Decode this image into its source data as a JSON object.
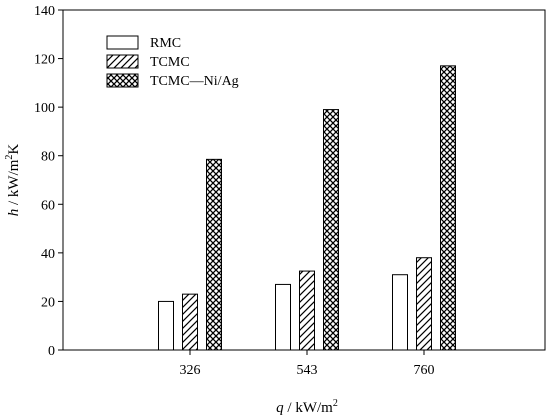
{
  "chart_data": {
    "type": "bar",
    "title": "",
    "xlabel": {
      "var": "q",
      "rest": " / kW/m",
      "sup": "2"
    },
    "ylabel": {
      "var": "h",
      "rest1": " / kW/m",
      "sup": "2",
      "rest2": "K"
    },
    "categories": [
      "326",
      "543",
      "760"
    ],
    "ylim": [
      0,
      140
    ],
    "yticks": [
      0,
      20,
      40,
      60,
      80,
      100,
      120,
      140
    ],
    "grid": false,
    "legend_placement": "top-left",
    "series": [
      {
        "name": "RMC",
        "pattern": "none",
        "values": [
          20,
          27,
          31
        ]
      },
      {
        "name": "TCMC",
        "pattern": "diagonal-hatch",
        "values": [
          23,
          32.5,
          38
        ]
      },
      {
        "name": "TCMC—Ni/Ag",
        "pattern": "crosshatch",
        "values": [
          78.5,
          99,
          117
        ]
      }
    ],
    "colors": {
      "bar_fill": "#ffffff",
      "stroke": "#000000"
    }
  }
}
